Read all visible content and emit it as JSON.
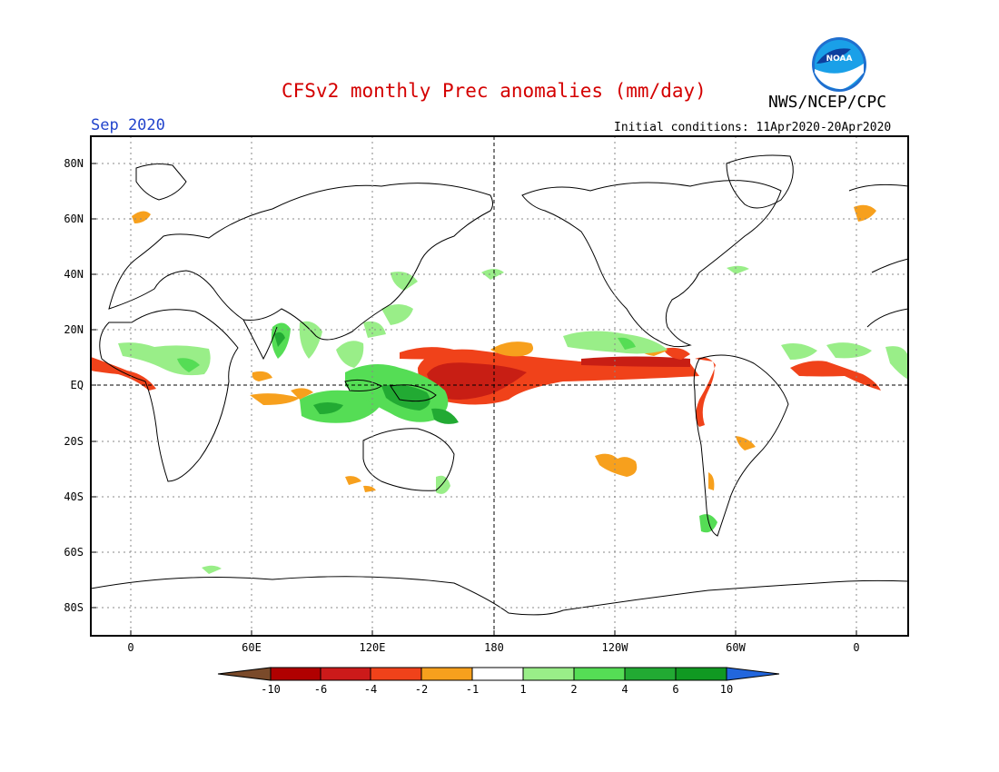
{
  "header": {
    "title": "CFSv2 monthly Prec anomalies (mm/day)",
    "agency": "NWS/NCEP/CPC",
    "month": "Sep 2020",
    "initial_conditions": "Initial conditions: 11Apr2020-20Apr2020",
    "logo_text": "NOAA"
  },
  "map": {
    "lat_labels": [
      "80N",
      "60N",
      "40N",
      "20N",
      "EQ",
      "20S",
      "40S",
      "60S",
      "80S"
    ],
    "lon_labels": [
      "0",
      "60E",
      "120E",
      "180",
      "120W",
      "60W",
      "0"
    ]
  },
  "colorbar": {
    "labels": [
      "-10",
      "-6",
      "-4",
      "-2",
      "-1",
      "1",
      "2",
      "4",
      "6",
      "10"
    ],
    "colors": [
      "#7a4a2a",
      "#b00000",
      "#cc1a1a",
      "#f0421a",
      "#f7a01d",
      "#ffffff",
      "#99ee88",
      "#55dd55",
      "#22aa33",
      "#109922",
      "#2266dd"
    ]
  },
  "colors": {
    "title": "#d40000",
    "month": "#2244cc",
    "dry_strong": "#c81e14",
    "dry_mod": "#f0421a",
    "dry_weak": "#f7a01d",
    "wet_weak": "#99ee88",
    "wet_mod": "#55dd55",
    "wet_strong": "#22aa33"
  }
}
